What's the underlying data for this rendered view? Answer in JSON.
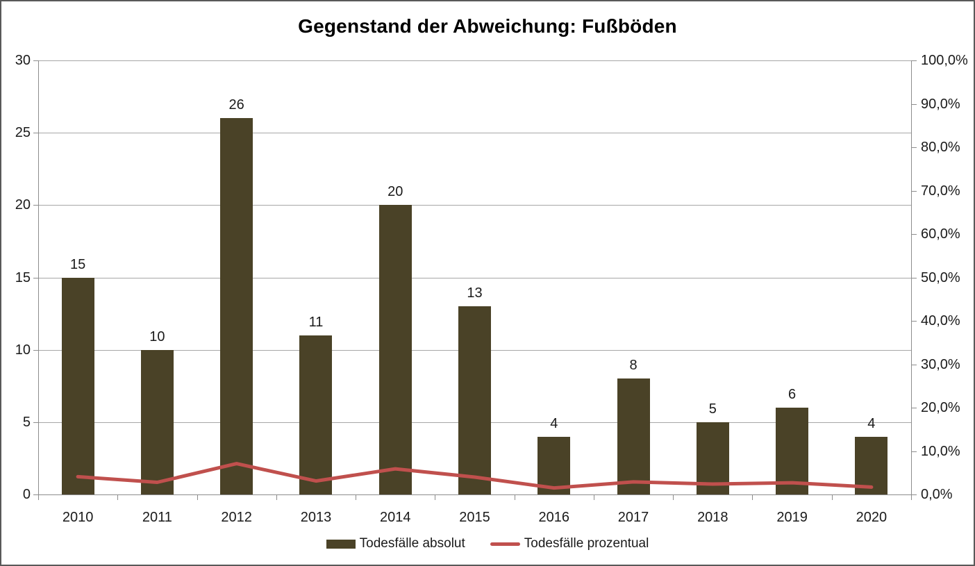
{
  "title": "Gegenstand der Abweichung: Fußböden",
  "legend": {
    "bar_label": "Todesfälle absolut",
    "line_label": "Todesfälle prozentual"
  },
  "colors": {
    "bar": "#4A4227",
    "line": "#C0504D",
    "grid": "#A6A6A6",
    "axis": "#8C8C8C",
    "border": "#595959",
    "text": "#1A1A1A",
    "background": "#FFFFFF"
  },
  "chart_data": {
    "type": "bar",
    "subtype": "combo-bar-line-dual-axis",
    "title": "Gegenstand der Abweichung: Fußböden",
    "categories": [
      "2010",
      "2011",
      "2012",
      "2013",
      "2014",
      "2015",
      "2016",
      "2017",
      "2018",
      "2019",
      "2020"
    ],
    "series": [
      {
        "name": "Todesfälle absolut",
        "type": "bar",
        "axis": "left",
        "color": "#4A4227",
        "values": [
          15,
          10,
          26,
          11,
          20,
          13,
          4,
          8,
          5,
          6,
          4
        ]
      },
      {
        "name": "Todesfälle prozentual",
        "type": "line",
        "axis": "right",
        "color": "#C0504D",
        "values_percent": [
          4.1,
          2.8,
          7.1,
          3.1,
          5.9,
          4.0,
          1.5,
          2.9,
          2.4,
          2.7,
          1.7
        ]
      }
    ],
    "left_axis": {
      "min": 0,
      "max": 30,
      "step": 5,
      "tick_labels": [
        "0",
        "5",
        "10",
        "15",
        "20",
        "25",
        "30"
      ]
    },
    "right_axis": {
      "min": 0,
      "max": 100,
      "step": 10,
      "tick_labels": [
        "0,0%",
        "10,0%",
        "20,0%",
        "30,0%",
        "40,0%",
        "50,0%",
        "60,0%",
        "70,0%",
        "80,0%",
        "90,0%",
        "100,0%"
      ]
    },
    "grid": true,
    "data_labels": true,
    "legend_position": "bottom"
  }
}
